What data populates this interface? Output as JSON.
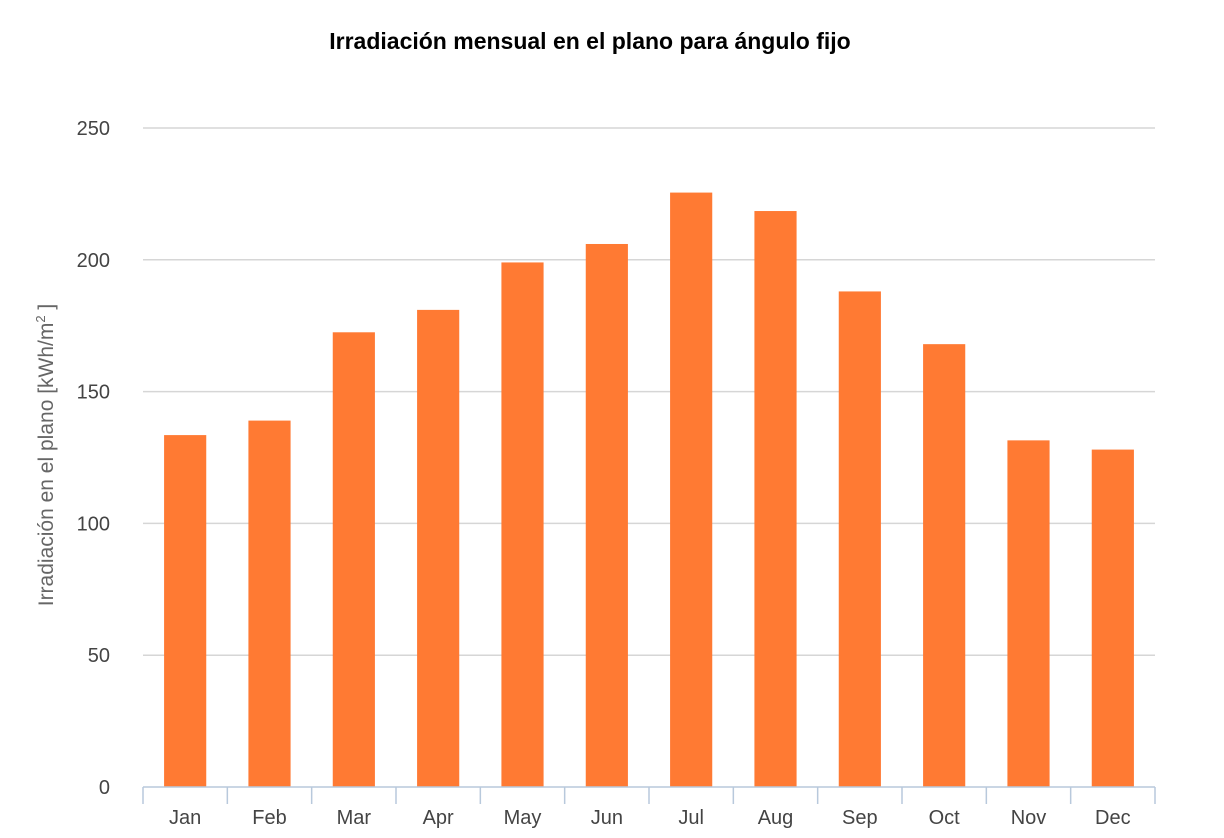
{
  "chart_data": {
    "type": "bar",
    "title": "Irradiación mensual en el plano para ángulo fijo",
    "ylabel_main": "Irradiación en el plano [kWh/m",
    "ylabel_sup": "2",
    "ylabel_close": " ]",
    "xlabel": "",
    "categories": [
      "Jan",
      "Feb",
      "Mar",
      "Apr",
      "May",
      "Jun",
      "Jul",
      "Aug",
      "Sep",
      "Oct",
      "Nov",
      "Dec"
    ],
    "series": [
      {
        "values": [
          133.5,
          139,
          172.5,
          181,
          199,
          206,
          225.5,
          218.5,
          188,
          168,
          131.5,
          128
        ],
        "color": "#ff7a33"
      }
    ],
    "ylim": [
      0,
      250
    ],
    "yticks": [
      0,
      50,
      100,
      150,
      200,
      250
    ],
    "grid": true,
    "legend": "none"
  }
}
